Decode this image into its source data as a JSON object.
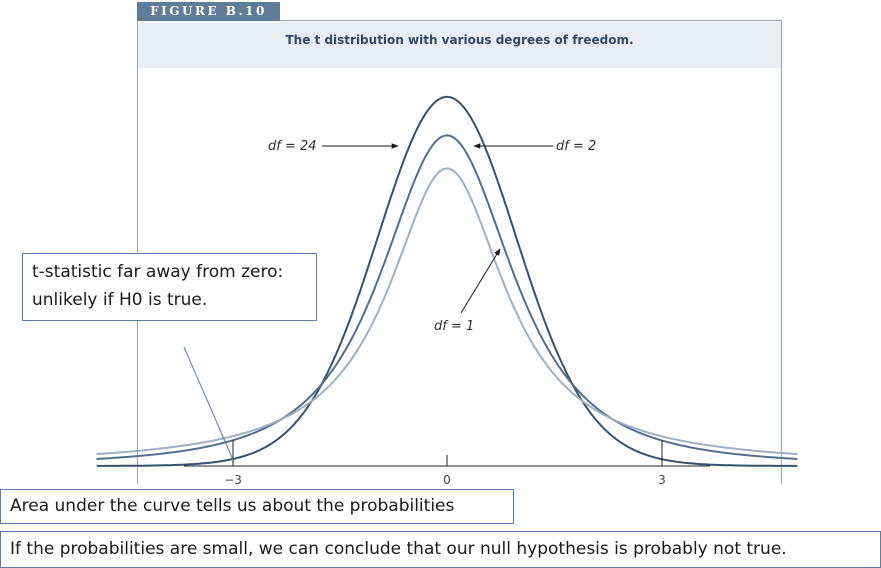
{
  "figure": {
    "label": "FIGURE B.10",
    "caption": "The t distribution with various degrees of freedom."
  },
  "callouts": {
    "tstat_line1": "t-statistic far away from zero:",
    "tstat_line2": "unlikely if H0 is true.",
    "area": "Area under the curve tells us about the probabilities",
    "conclusion": "If the probabilities are small, we can conclude that our null hypothesis is probably not true."
  },
  "colors": {
    "df24": "#35536f",
    "df2": "#52708e",
    "df1": "#9db1c4",
    "tab": "#5f7c99",
    "caption_band": "#e8eef4",
    "callout_border": "#5b7fa6"
  },
  "chart_data": {
    "type": "line",
    "title": "The t distribution with various degrees of freedom.",
    "xlabel": "",
    "ylabel": "",
    "xlim": [
      -4.9,
      4.9
    ],
    "ylim": [
      0,
      0.4
    ],
    "xticks": [
      "−3",
      "0",
      "3"
    ],
    "xtick_values": [
      -3,
      0,
      3
    ],
    "grid": false,
    "series": [
      {
        "name": "df = 24",
        "df": 24,
        "x": [
          -4.8,
          -4,
          -3,
          -2,
          -1,
          0,
          1,
          2,
          3,
          4,
          4.8
        ],
        "y": [
          0.0004,
          0.0015,
          0.0066,
          0.055,
          0.238,
          0.395,
          0.238,
          0.055,
          0.0066,
          0.0015,
          0.0004
        ]
      },
      {
        "name": "df = 2",
        "df": 2,
        "x": [
          -4.8,
          -4,
          -3,
          -2,
          -1,
          0,
          1,
          2,
          3,
          4,
          4.8
        ],
        "y": [
          0.008,
          0.0131,
          0.0272,
          0.068,
          0.192,
          0.354,
          0.192,
          0.068,
          0.0272,
          0.0131,
          0.008
        ]
      },
      {
        "name": "df = 1",
        "df": 1,
        "x": [
          -4.8,
          -4,
          -3,
          -2,
          -1,
          0,
          1,
          2,
          3,
          4,
          4.8
        ],
        "y": [
          0.0132,
          0.0187,
          0.0318,
          0.064,
          0.159,
          0.318,
          0.159,
          0.064,
          0.0318,
          0.0187,
          0.0132
        ]
      }
    ],
    "annotations": [
      "df = 24",
      "df = 2",
      "df = 1"
    ]
  }
}
